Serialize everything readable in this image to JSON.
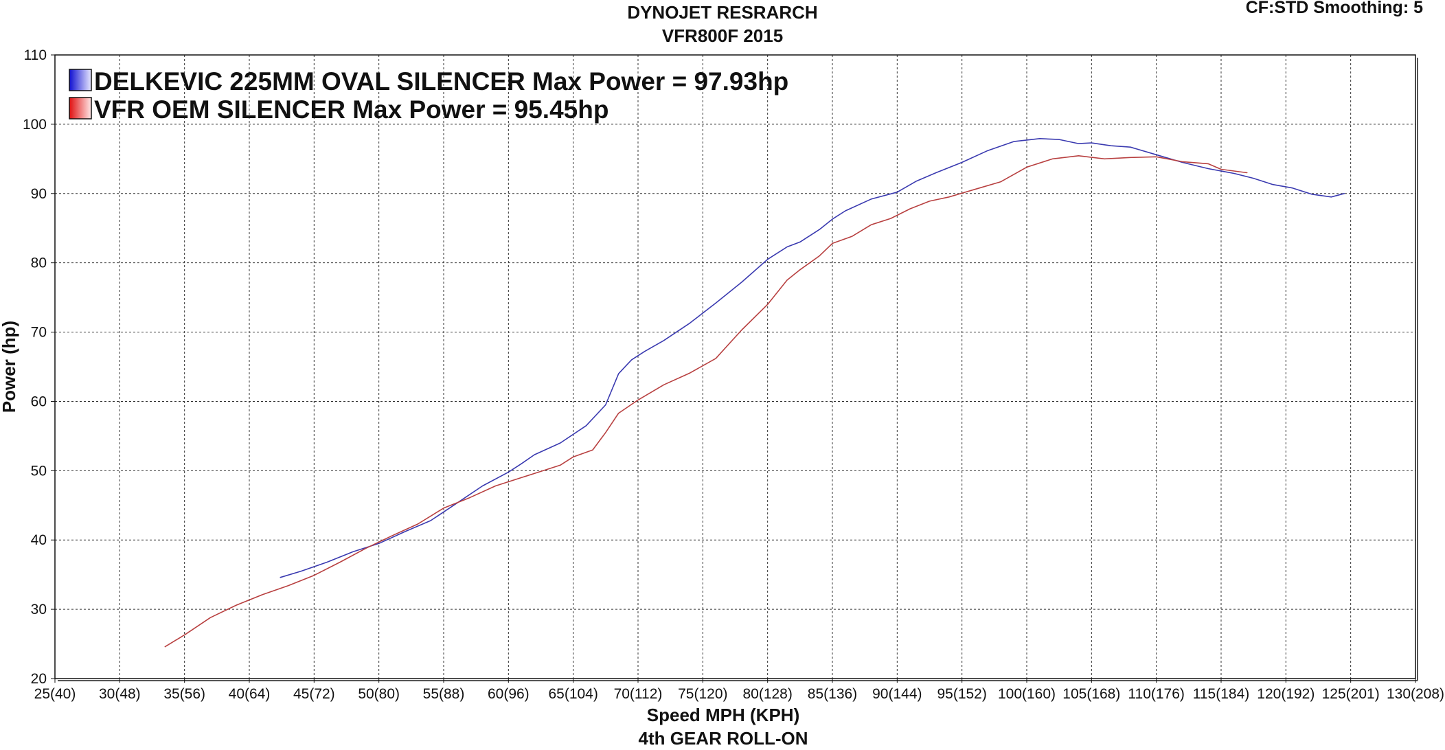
{
  "header": {
    "title_line1": "DYNOJET RESRARCH",
    "title_line2": "VFR800F 2015",
    "settings": "CF:STD Smoothing: 5"
  },
  "chart_data": {
    "type": "line",
    "title": "DYNOJET RESRARCH",
    "subtitle": "VFR800F 2015",
    "xlabel": "Speed MPH (KPH)",
    "xlabel_sub": "4th GEAR ROLL-ON",
    "ylabel": "Power (hp)",
    "xlim": [
      25,
      130
    ],
    "ylim": [
      20,
      110
    ],
    "grid": true,
    "legend_position": "top-left",
    "x_ticks": [
      {
        "value": 25,
        "label": "25(40)"
      },
      {
        "value": 30,
        "label": "30(48)"
      },
      {
        "value": 35,
        "label": "35(56)"
      },
      {
        "value": 40,
        "label": "40(64)"
      },
      {
        "value": 45,
        "label": "45(72)"
      },
      {
        "value": 50,
        "label": "50(80)"
      },
      {
        "value": 55,
        "label": "55(88)"
      },
      {
        "value": 60,
        "label": "60(96)"
      },
      {
        "value": 65,
        "label": "65(104)"
      },
      {
        "value": 70,
        "label": "70(112)"
      },
      {
        "value": 75,
        "label": "75(120)"
      },
      {
        "value": 80,
        "label": "80(128)"
      },
      {
        "value": 85,
        "label": "85(136)"
      },
      {
        "value": 90,
        "label": "90(144)"
      },
      {
        "value": 95,
        "label": "95(152)"
      },
      {
        "value": 100,
        "label": "100(160)"
      },
      {
        "value": 105,
        "label": "105(168)"
      },
      {
        "value": 110,
        "label": "110(176)"
      },
      {
        "value": 115,
        "label": "115(184)"
      },
      {
        "value": 120,
        "label": "120(192)"
      },
      {
        "value": 125,
        "label": "125(201)"
      },
      {
        "value": 130,
        "label": "130(208)"
      }
    ],
    "y_ticks": [
      20,
      30,
      40,
      50,
      60,
      70,
      80,
      90,
      100,
      110
    ],
    "series": [
      {
        "name": "DELKEVIC 225MM OVAL SILENCER Max Power = 97.93hp",
        "color": "#3a3ab0",
        "x": [
          42.4,
          44,
          46,
          48,
          50,
          52,
          54,
          56,
          58,
          60,
          61,
          62,
          64,
          66,
          67.5,
          68.5,
          69.5,
          70.5,
          72,
          74,
          76,
          78,
          80,
          81.5,
          82.5,
          84,
          85,
          86,
          88,
          90,
          91.5,
          93,
          95,
          97,
          99,
          101,
          102.5,
          104,
          105,
          106.5,
          108,
          110,
          112,
          114,
          116,
          117.5,
          119,
          120.5,
          122,
          123.5,
          124.5
        ],
        "y": [
          34.6,
          35.5,
          36.8,
          38.3,
          39.5,
          41.2,
          42.8,
          45.3,
          47.8,
          49.8,
          51,
          52.3,
          54,
          56.5,
          59.5,
          64,
          66,
          67.2,
          68.8,
          71.3,
          74.2,
          77.2,
          80.5,
          82.3,
          83,
          84.8,
          86.3,
          87.5,
          89.2,
          90.2,
          91.8,
          93,
          94.5,
          96.2,
          97.5,
          97.93,
          97.8,
          97.2,
          97.3,
          96.9,
          96.7,
          95.6,
          94.5,
          93.6,
          92.9,
          92.2,
          91.3,
          90.8,
          89.9,
          89.5,
          90
        ]
      },
      {
        "name": "VFR OEM SILENCER Max Power = 95.45hp",
        "color": "#b84040",
        "x": [
          33.5,
          35,
          37,
          39,
          41,
          43,
          45,
          47,
          49,
          51,
          53,
          55,
          57,
          59,
          61,
          62,
          64,
          65,
          66.5,
          67.5,
          68.5,
          70,
          72,
          74,
          76,
          78,
          80,
          81.5,
          82.5,
          84,
          85,
          86.5,
          88,
          89.5,
          91,
          92.5,
          94,
          96,
          98,
          100,
          102,
          104,
          106,
          108,
          110,
          112,
          114,
          115,
          117
        ],
        "y": [
          24.6,
          26.3,
          28.8,
          30.6,
          32.1,
          33.4,
          34.9,
          36.8,
          38.8,
          40.6,
          42.3,
          44.6,
          46.1,
          47.8,
          49,
          49.6,
          50.8,
          52,
          53,
          55.5,
          58.3,
          60.2,
          62.4,
          64.1,
          66.2,
          70.3,
          74,
          77.5,
          79,
          81,
          82.8,
          83.8,
          85.5,
          86.4,
          87.8,
          88.9,
          89.5,
          90.6,
          91.7,
          93.8,
          95,
          95.45,
          95,
          95.2,
          95.3,
          94.6,
          94.3,
          93.5,
          93
        ]
      }
    ]
  }
}
